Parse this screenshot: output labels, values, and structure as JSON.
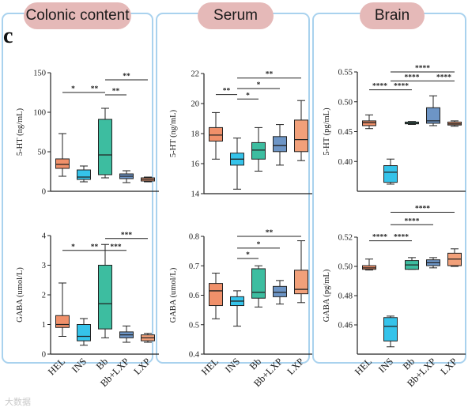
{
  "panel_letter": "c",
  "panels": [
    {
      "title": "Colonic content"
    },
    {
      "title": "Serum"
    },
    {
      "title": "Brain"
    }
  ],
  "watermark": "大数据",
  "groups": [
    "HEL",
    "INS",
    "Bb",
    "Bb+LXP",
    "LXP"
  ],
  "colors": {
    "HEL": "#f0906a",
    "INS": "#35c3ea",
    "Bb": "#3dbda0",
    "Bb+LXP": "#6d95c6",
    "LXP": "#f1a07a",
    "panel_border": "#a9d2ee",
    "pill": "#e5b9b8"
  },
  "chart_data": [
    {
      "type": "box",
      "panel": "Colonic content",
      "ylabel": "5-HT (ng/mL)",
      "ylim": [
        0,
        150
      ],
      "yticks": [
        "0",
        "50",
        "100",
        "150"
      ],
      "categories": [
        "HEL",
        "INS",
        "Bb",
        "Bb+LXP",
        "LXP"
      ],
      "boxes": [
        {
          "min": 19,
          "q1": 29,
          "median": 34,
          "q3": 41,
          "max": 73
        },
        {
          "min": 12,
          "q1": 15,
          "median": 18,
          "q3": 27,
          "max": 32
        },
        {
          "min": 17,
          "q1": 21,
          "median": 46,
          "q3": 91,
          "max": 105
        },
        {
          "min": 11,
          "q1": 16,
          "median": 19,
          "q3": 22,
          "max": 26
        },
        {
          "min": 12,
          "q1": 13,
          "median": 15,
          "q3": 17,
          "max": 18
        }
      ],
      "significance": [
        {
          "from": 0,
          "to": 1,
          "label": "*",
          "y": 125
        },
        {
          "from": 1,
          "to": 2,
          "label": "**",
          "y": 125
        },
        {
          "from": 2,
          "to": 3,
          "label": "**",
          "y": 122
        },
        {
          "from": 2,
          "to": 4,
          "label": "**",
          "y": 141
        }
      ]
    },
    {
      "type": "box",
      "panel": "Colonic content",
      "ylabel": "GABA (umol/L)",
      "ylim": [
        0,
        4
      ],
      "yticks": [
        "0",
        "1",
        "2",
        "3",
        "4"
      ],
      "categories": [
        "HEL",
        "INS",
        "Bb",
        "Bb+LXP",
        "LXP"
      ],
      "boxes": [
        {
          "min": 0.6,
          "q1": 0.9,
          "median": 1.0,
          "q3": 1.3,
          "max": 2.4
        },
        {
          "min": 0.3,
          "q1": 0.45,
          "median": 0.6,
          "q3": 1.0,
          "max": 1.2
        },
        {
          "min": 0.55,
          "q1": 0.85,
          "median": 1.7,
          "q3": 3.0,
          "max": 3.7
        },
        {
          "min": 0.4,
          "q1": 0.55,
          "median": 0.65,
          "q3": 0.75,
          "max": 0.95
        },
        {
          "min": 0.4,
          "q1": 0.45,
          "median": 0.55,
          "q3": 0.65,
          "max": 0.7
        }
      ],
      "significance": [
        {
          "from": 0,
          "to": 1,
          "label": "*",
          "y": 3.5
        },
        {
          "from": 1,
          "to": 2,
          "label": "**",
          "y": 3.5
        },
        {
          "from": 2,
          "to": 3,
          "label": "***",
          "y": 3.5
        },
        {
          "from": 2,
          "to": 4,
          "label": "***",
          "y": 3.9
        }
      ]
    },
    {
      "type": "box",
      "panel": "Serum",
      "ylabel": "5-HT (ng/mL)",
      "ylim": [
        14,
        22
      ],
      "yticks": [
        "14",
        "16",
        "18",
        "20",
        "22"
      ],
      "categories": [
        "HEL",
        "INS",
        "Bb",
        "Bb+LXP",
        "LXP"
      ],
      "boxes": [
        {
          "min": 16.3,
          "q1": 17.5,
          "median": 17.9,
          "q3": 18.4,
          "max": 19.4
        },
        {
          "min": 14.3,
          "q1": 15.9,
          "median": 16.3,
          "q3": 16.7,
          "max": 17.7
        },
        {
          "min": 15.5,
          "q1": 16.3,
          "median": 16.9,
          "q3": 17.4,
          "max": 18.4
        },
        {
          "min": 15.9,
          "q1": 16.8,
          "median": 17.2,
          "q3": 17.8,
          "max": 18.6
        },
        {
          "min": 16.2,
          "q1": 16.8,
          "median": 17.6,
          "q3": 18.9,
          "max": 20.2
        }
      ],
      "significance": [
        {
          "from": 0,
          "to": 1,
          "label": "**",
          "y": 20.6
        },
        {
          "from": 1,
          "to": 2,
          "label": "*",
          "y": 20.3
        },
        {
          "from": 1,
          "to": 3,
          "label": "*",
          "y": 21.0
        },
        {
          "from": 1,
          "to": 4,
          "label": "**",
          "y": 21.7
        }
      ]
    },
    {
      "type": "box",
      "panel": "Serum",
      "ylabel": "GABA (umol/L)",
      "ylim": [
        0.4,
        0.8
      ],
      "yticks": [
        "0.4",
        "0.5",
        "0.6",
        "0.7",
        "0.8"
      ],
      "categories": [
        "HEL",
        "INS",
        "Bb",
        "Bb+LXP",
        "LXP"
      ],
      "boxes": [
        {
          "min": 0.52,
          "q1": 0.565,
          "median": 0.615,
          "q3": 0.64,
          "max": 0.675
        },
        {
          "min": 0.495,
          "q1": 0.565,
          "median": 0.58,
          "q3": 0.595,
          "max": 0.615
        },
        {
          "min": 0.56,
          "q1": 0.59,
          "median": 0.61,
          "q3": 0.69,
          "max": 0.7
        },
        {
          "min": 0.57,
          "q1": 0.595,
          "median": 0.61,
          "q3": 0.63,
          "max": 0.65
        },
        {
          "min": 0.575,
          "q1": 0.605,
          "median": 0.62,
          "q3": 0.685,
          "max": 0.785
        }
      ],
      "significance": [
        {
          "from": 1,
          "to": 2,
          "label": "*",
          "y": 0.725
        },
        {
          "from": 1,
          "to": 3,
          "label": "*",
          "y": 0.76
        },
        {
          "from": 1,
          "to": 4,
          "label": "**",
          "y": 0.8
        }
      ]
    },
    {
      "type": "box",
      "panel": "Brain",
      "ylabel": "5-HT (pg/mL)",
      "ylim": [
        0.35,
        0.55
      ],
      "yticks": [
        "0.40",
        "0.45",
        "0.50",
        "0.55"
      ],
      "categories": [
        "HEL",
        "INS",
        "Bb",
        "Bb+LXP",
        "LXP"
      ],
      "boxes": [
        {
          "min": 0.455,
          "q1": 0.46,
          "median": 0.465,
          "q3": 0.468,
          "max": 0.478
        },
        {
          "min": 0.362,
          "q1": 0.365,
          "median": 0.382,
          "q3": 0.393,
          "max": 0.404
        },
        {
          "min": 0.462,
          "q1": 0.463,
          "median": 0.464,
          "q3": 0.466,
          "max": 0.467
        },
        {
          "min": 0.46,
          "q1": 0.464,
          "median": 0.468,
          "q3": 0.49,
          "max": 0.51
        },
        {
          "min": 0.459,
          "q1": 0.461,
          "median": 0.463,
          "q3": 0.466,
          "max": 0.468
        }
      ],
      "significance": [
        {
          "from": 0,
          "to": 1,
          "label": "****",
          "y": 0.52
        },
        {
          "from": 1,
          "to": 2,
          "label": "****",
          "y": 0.52
        },
        {
          "from": 1,
          "to": 3,
          "label": "****",
          "y": 0.535
        },
        {
          "from": 3,
          "to": 4,
          "label": "****",
          "y": 0.535
        },
        {
          "from": 1,
          "to": 4,
          "label": "****",
          "y": 0.55
        }
      ]
    },
    {
      "type": "box",
      "panel": "Brain",
      "ylabel": "GABA (pg/mL)",
      "ylim": [
        0.44,
        0.52
      ],
      "yticks": [
        "0.46",
        "0.48",
        "0.50",
        "0.52"
      ],
      "categories": [
        "HEL",
        "INS",
        "Bb",
        "Bb+LXP",
        "LXP"
      ],
      "boxes": [
        {
          "min": 0.4975,
          "q1": 0.498,
          "median": 0.499,
          "q3": 0.5005,
          "max": 0.505
        },
        {
          "min": 0.445,
          "q1": 0.449,
          "median": 0.459,
          "q3": 0.465,
          "max": 0.466
        },
        {
          "min": 0.498,
          "q1": 0.498,
          "median": 0.501,
          "q3": 0.504,
          "max": 0.506
        },
        {
          "min": 0.499,
          "q1": 0.5005,
          "median": 0.5025,
          "q3": 0.5045,
          "max": 0.506
        },
        {
          "min": 0.5,
          "q1": 0.5005,
          "median": 0.505,
          "q3": 0.509,
          "max": 0.512
        }
      ],
      "significance": [
        {
          "from": 0,
          "to": 1,
          "label": "****",
          "y": 0.5175
        },
        {
          "from": 1,
          "to": 2,
          "label": "****",
          "y": 0.5175
        },
        {
          "from": 1,
          "to": 3,
          "label": "****",
          "y": 0.5285
        },
        {
          "from": 1,
          "to": 4,
          "label": "****",
          "y": 0.537
        }
      ]
    }
  ]
}
